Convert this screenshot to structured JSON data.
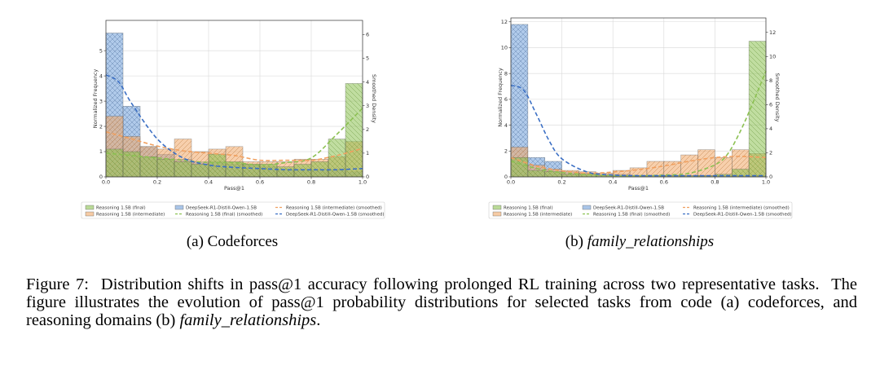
{
  "colors": {
    "final": "#8cc152",
    "intermediate": "#f0a868",
    "distill": "#6f9fd8",
    "final_line": "#8cc152",
    "intermediate_line": "#f0a060",
    "distill_line": "#3b6fc4"
  },
  "legend": [
    {
      "label": "Reasoning 1.5B (final)",
      "kind": "bar",
      "series": "final"
    },
    {
      "label": "Reasoning 1.5B (intermediate)",
      "kind": "bar",
      "series": "intermediate"
    },
    {
      "label": "DeepSeek-R1-Distill-Qwen-1.5B",
      "kind": "bar",
      "series": "distill"
    },
    {
      "label": "Reasoning 1.5B (final) (smoothed)",
      "kind": "line",
      "series": "final"
    },
    {
      "label": "Reasoning 1.5B (intermediate) (smoothed)",
      "kind": "line",
      "series": "intermediate"
    },
    {
      "label": "DeepSeek-R1-Distill-Qwen-1.5B (smoothed)",
      "kind": "line",
      "series": "distill"
    }
  ],
  "chart_data": [
    {
      "type": "bar",
      "subcaption_prefix": "(a) ",
      "subcaption_name": "Codeforces",
      "subcaption_italic": false,
      "xlabel": "Pass@1",
      "ylabel": "Normalized Frequency",
      "ylabel_right": "Smoothed Density",
      "xlim": [
        0,
        1
      ],
      "ylim": [
        0,
        6.2
      ],
      "ylim_right": [
        0,
        6.6
      ],
      "xticks": [
        "0.0",
        "0.2",
        "0.4",
        "0.6",
        "0.8",
        "1.0"
      ],
      "yticks": [
        "0",
        "1",
        "2",
        "3",
        "4",
        "5"
      ],
      "yticks_right": [
        "0",
        "1",
        "2",
        "3",
        "4",
        "5",
        "6"
      ],
      "bin_width": 0.0667,
      "bins": [
        0.0,
        0.0667,
        0.1333,
        0.2,
        0.2667,
        0.3333,
        0.4,
        0.4667,
        0.5333,
        0.6,
        0.6667,
        0.7333,
        0.8,
        0.8667,
        0.9333
      ],
      "series": [
        {
          "name": "DeepSeek-R1-Distill-Qwen-1.5B",
          "key": "distill",
          "values": [
            5.7,
            2.8,
            1.2,
            0.9,
            0.7,
            0.6,
            0.6,
            0.5,
            0.5,
            0.4,
            0.3,
            0.3,
            0.3,
            0.3,
            0.2
          ]
        },
        {
          "name": "Reasoning 1.5B (intermediate)",
          "key": "intermediate",
          "values": [
            2.4,
            1.6,
            1.2,
            1.1,
            1.5,
            1.0,
            1.1,
            1.2,
            0.6,
            0.6,
            0.6,
            0.7,
            0.7,
            0.8,
            1.4
          ]
        },
        {
          "name": "Reasoning 1.5B (final)",
          "key": "final",
          "values": [
            1.1,
            1.0,
            0.8,
            0.7,
            0.6,
            0.5,
            0.9,
            0.6,
            0.5,
            0.5,
            0.4,
            0.5,
            0.6,
            1.5,
            3.7
          ]
        }
      ],
      "smoothed": [
        {
          "name": "Reasoning 1.5B (final) (smoothed)",
          "key": "final",
          "x": [
            0.0,
            0.1,
            0.2,
            0.3,
            0.4,
            0.5,
            0.6,
            0.7,
            0.8,
            0.9,
            1.0
          ],
          "y": [
            1.0,
            0.9,
            0.8,
            0.7,
            0.6,
            0.6,
            0.5,
            0.6,
            0.8,
            1.8,
            2.9
          ]
        },
        {
          "name": "Reasoning 1.5B (intermediate) (smoothed)",
          "key": "intermediate",
          "x": [
            0.0,
            0.1,
            0.2,
            0.3,
            0.4,
            0.5,
            0.6,
            0.7,
            0.8,
            0.9,
            1.0
          ],
          "y": [
            1.9,
            1.6,
            1.3,
            1.1,
            1.0,
            0.9,
            0.7,
            0.7,
            0.7,
            0.9,
            1.2
          ]
        },
        {
          "name": "DeepSeek-R1-Distill-Qwen-1.5B (smoothed)",
          "key": "distill",
          "x": [
            0.0,
            0.05,
            0.1,
            0.2,
            0.3,
            0.4,
            0.5,
            0.6,
            0.7,
            0.8,
            0.9,
            1.0
          ],
          "y": [
            4.3,
            4.0,
            3.1,
            1.6,
            0.8,
            0.5,
            0.4,
            0.35,
            0.3,
            0.3,
            0.3,
            0.35
          ]
        }
      ]
    },
    {
      "type": "bar",
      "subcaption_prefix": "(b) ",
      "subcaption_name": "family_relationships",
      "subcaption_italic": true,
      "xlabel": "Pass@1",
      "ylabel": "Normalized Frequency",
      "ylabel_right": "Smoothed Density",
      "xlim": [
        0,
        1
      ],
      "ylim": [
        0,
        12.3
      ],
      "ylim_right": [
        0,
        13.2
      ],
      "xticks": [
        "0.0",
        "0.2",
        "0.4",
        "0.6",
        "0.8",
        "1.0"
      ],
      "yticks": [
        "0",
        "2",
        "4",
        "6",
        "8",
        "10",
        "12"
      ],
      "yticks_right": [
        "0",
        "2",
        "4",
        "6",
        "8",
        "10",
        "12"
      ],
      "bin_width": 0.0667,
      "bins": [
        0.0,
        0.0667,
        0.1333,
        0.2,
        0.2667,
        0.3333,
        0.4,
        0.4667,
        0.5333,
        0.6,
        0.6667,
        0.7333,
        0.8,
        0.8667,
        0.9333
      ],
      "series": [
        {
          "name": "DeepSeek-R1-Distill-Qwen-1.5B",
          "key": "distill",
          "values": [
            11.8,
            1.5,
            1.2,
            0.4,
            0.3,
            0.2,
            0.2,
            0.1,
            0.1,
            0.1,
            0.1,
            0.1,
            0.1,
            0.1,
            0.1
          ]
        },
        {
          "name": "Reasoning 1.5B (intermediate)",
          "key": "intermediate",
          "values": [
            2.3,
            0.9,
            0.6,
            0.5,
            0.4,
            0.3,
            0.5,
            0.7,
            1.2,
            1.2,
            1.7,
            2.1,
            1.5,
            2.1,
            1.8
          ]
        },
        {
          "name": "Reasoning 1.5B (final)",
          "key": "final",
          "values": [
            1.5,
            0.5,
            0.4,
            0.2,
            0.2,
            0.1,
            0.1,
            0.1,
            0.1,
            0.1,
            0.1,
            0.1,
            0.2,
            0.6,
            10.5
          ]
        }
      ],
      "smoothed": [
        {
          "name": "Reasoning 1.5B (final) (smoothed)",
          "key": "final",
          "x": [
            0.0,
            0.1,
            0.2,
            0.3,
            0.4,
            0.5,
            0.6,
            0.7,
            0.8,
            0.85,
            0.9,
            0.95,
            1.0
          ],
          "y": [
            1.3,
            0.7,
            0.35,
            0.2,
            0.1,
            0.1,
            0.15,
            0.3,
            1.0,
            1.9,
            3.8,
            6.2,
            8.8
          ]
        },
        {
          "name": "Reasoning 1.5B (intermediate) (smoothed)",
          "key": "intermediate",
          "x": [
            0.0,
            0.1,
            0.2,
            0.3,
            0.4,
            0.5,
            0.6,
            0.7,
            0.8,
            0.9,
            1.0
          ],
          "y": [
            1.6,
            0.9,
            0.5,
            0.3,
            0.4,
            0.6,
            0.9,
            1.3,
            1.6,
            1.7,
            1.6
          ]
        },
        {
          "name": "DeepSeek-R1-Distill-Qwen-1.5B (smoothed)",
          "key": "distill",
          "x": [
            0.0,
            0.05,
            0.1,
            0.15,
            0.2,
            0.3,
            0.4,
            0.5,
            0.6,
            0.7,
            0.8,
            0.9,
            1.0
          ],
          "y": [
            7.6,
            7.2,
            5.2,
            3.0,
            1.5,
            0.4,
            0.15,
            0.1,
            0.1,
            0.1,
            0.1,
            0.1,
            0.1
          ]
        }
      ]
    }
  ],
  "caption": {
    "label": "Figure 7:",
    "text_1": "Distribution shifts in pass@1 accuracy following prolonged RL training across two representative tasks.  The figure illustrates the evolution of pass@1 probability distributions for selected tasks from code (a) codeforces, and reasoning domains (b) ",
    "italic": "family_relationships",
    "text_2": "."
  }
}
